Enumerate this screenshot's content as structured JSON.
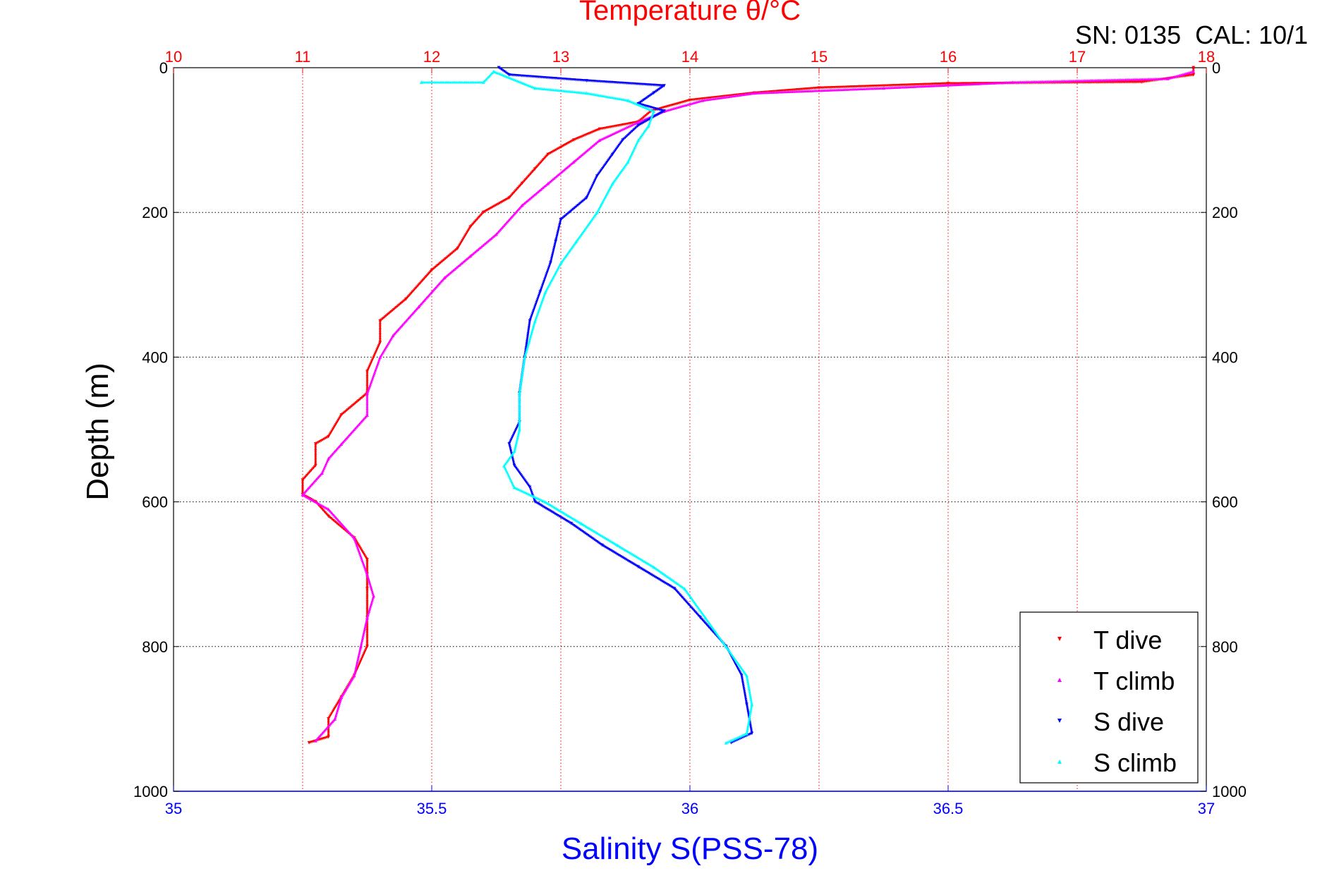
{
  "chart_data": {
    "type": "scatter",
    "title": "Temperature θ/°C",
    "top_axis": {
      "label": "Temperature θ/°C",
      "range": [
        10,
        18
      ],
      "ticks": [
        10,
        11,
        12,
        13,
        14,
        15,
        16,
        17,
        18
      ],
      "color": "#ff0000"
    },
    "bottom_axis": {
      "label": "Salinity S(PSS-78)",
      "range": [
        35,
        37
      ],
      "ticks": [
        "35",
        "35.5",
        "36",
        "36.5",
        "37"
      ],
      "color": "#0000ff"
    },
    "y_axis": {
      "label": "Depth (m)",
      "range": [
        0,
        1000
      ],
      "inverted": true,
      "ticks": [
        0,
        200,
        400,
        600,
        800,
        1000
      ]
    },
    "annotation": "SN: 0135  CAL: 10/1",
    "grid": true,
    "legend_position": "bottom-right",
    "legend": [
      "T dive",
      "T climb",
      "S dive",
      "S climb"
    ],
    "series": [
      {
        "name": "T dive",
        "axis": "temperature",
        "color": "#ff0000",
        "marker": "triangle-down",
        "points": [
          [
            17.9,
            0
          ],
          [
            17.9,
            10
          ],
          [
            17.5,
            20
          ],
          [
            16,
            22
          ],
          [
            15,
            28
          ],
          [
            14.5,
            35
          ],
          [
            14,
            45
          ],
          [
            13.7,
            60
          ],
          [
            13.6,
            75
          ],
          [
            13.3,
            85
          ],
          [
            13.1,
            100
          ],
          [
            12.9,
            120
          ],
          [
            12.8,
            140
          ],
          [
            12.7,
            160
          ],
          [
            12.6,
            180
          ],
          [
            12.4,
            200
          ],
          [
            12.3,
            220
          ],
          [
            12.2,
            250
          ],
          [
            12.0,
            280
          ],
          [
            11.8,
            320
          ],
          [
            11.6,
            350
          ],
          [
            11.6,
            380
          ],
          [
            11.5,
            420
          ],
          [
            11.5,
            450
          ],
          [
            11.3,
            480
          ],
          [
            11.2,
            510
          ],
          [
            11.1,
            520
          ],
          [
            11.1,
            550
          ],
          [
            11.0,
            570
          ],
          [
            11.0,
            590
          ],
          [
            11.1,
            600
          ],
          [
            11.2,
            620
          ],
          [
            11.4,
            650
          ],
          [
            11.5,
            680
          ],
          [
            11.5,
            700
          ],
          [
            11.5,
            720
          ],
          [
            11.5,
            760
          ],
          [
            11.5,
            800
          ],
          [
            11.4,
            840
          ],
          [
            11.3,
            870
          ],
          [
            11.2,
            900
          ],
          [
            11.2,
            925
          ],
          [
            11.05,
            933
          ]
        ]
      },
      {
        "name": "T climb",
        "axis": "temperature",
        "color": "#ff00ff",
        "marker": "triangle-up",
        "points": [
          [
            17.9,
            5
          ],
          [
            17.7,
            15
          ],
          [
            16.5,
            20
          ],
          [
            15.5,
            28
          ],
          [
            14.5,
            35
          ],
          [
            14.1,
            45
          ],
          [
            13.8,
            60
          ],
          [
            13.6,
            75
          ],
          [
            13.3,
            100
          ],
          [
            13.1,
            130
          ],
          [
            12.9,
            160
          ],
          [
            12.7,
            190
          ],
          [
            12.5,
            230
          ],
          [
            12.3,
            260
          ],
          [
            12.1,
            290
          ],
          [
            11.9,
            330
          ],
          [
            11.7,
            370
          ],
          [
            11.6,
            400
          ],
          [
            11.5,
            450
          ],
          [
            11.5,
            480
          ],
          [
            11.3,
            520
          ],
          [
            11.2,
            540
          ],
          [
            11.15,
            560
          ],
          [
            11.0,
            590
          ],
          [
            11.2,
            610
          ],
          [
            11.4,
            650
          ],
          [
            11.5,
            700
          ],
          [
            11.55,
            730
          ],
          [
            11.5,
            760
          ],
          [
            11.45,
            800
          ],
          [
            11.4,
            840
          ],
          [
            11.3,
            870
          ],
          [
            11.25,
            900
          ],
          [
            11.1,
            930
          ]
        ]
      },
      {
        "name": "S dive",
        "axis": "salinity",
        "color": "#0000ff",
        "marker": "triangle-down",
        "points": [
          [
            35.63,
            0
          ],
          [
            35.65,
            10
          ],
          [
            35.8,
            18
          ],
          [
            35.95,
            25
          ],
          [
            35.93,
            35
          ],
          [
            35.9,
            50
          ],
          [
            35.95,
            60
          ],
          [
            35.9,
            80
          ],
          [
            35.87,
            100
          ],
          [
            35.85,
            120
          ],
          [
            35.82,
            150
          ],
          [
            35.8,
            180
          ],
          [
            35.75,
            210
          ],
          [
            35.74,
            240
          ],
          [
            35.73,
            270
          ],
          [
            35.71,
            310
          ],
          [
            35.69,
            350
          ],
          [
            35.68,
            400
          ],
          [
            35.67,
            450
          ],
          [
            35.67,
            490
          ],
          [
            35.65,
            520
          ],
          [
            35.66,
            550
          ],
          [
            35.69,
            580
          ],
          [
            35.7,
            600
          ],
          [
            35.77,
            630
          ],
          [
            35.83,
            660
          ],
          [
            35.9,
            690
          ],
          [
            35.97,
            720
          ],
          [
            36.02,
            760
          ],
          [
            36.07,
            800
          ],
          [
            36.1,
            840
          ],
          [
            36.11,
            880
          ],
          [
            36.12,
            920
          ],
          [
            36.08,
            933
          ]
        ]
      },
      {
        "name": "S climb",
        "axis": "salinity",
        "color": "#00ffff",
        "marker": "triangle-up",
        "points": [
          [
            35.48,
            20
          ],
          [
            35.6,
            20
          ],
          [
            35.62,
            5
          ],
          [
            35.7,
            28
          ],
          [
            35.8,
            35
          ],
          [
            35.88,
            45
          ],
          [
            35.93,
            60
          ],
          [
            35.92,
            80
          ],
          [
            35.9,
            100
          ],
          [
            35.88,
            130
          ],
          [
            35.85,
            160
          ],
          [
            35.82,
            200
          ],
          [
            35.78,
            240
          ],
          [
            35.75,
            270
          ],
          [
            35.72,
            310
          ],
          [
            35.7,
            350
          ],
          [
            35.68,
            400
          ],
          [
            35.67,
            450
          ],
          [
            35.67,
            500
          ],
          [
            35.66,
            530
          ],
          [
            35.64,
            550
          ],
          [
            35.66,
            580
          ],
          [
            35.72,
            600
          ],
          [
            35.79,
            630
          ],
          [
            35.86,
            660
          ],
          [
            35.93,
            690
          ],
          [
            35.99,
            720
          ],
          [
            36.03,
            760
          ],
          [
            36.07,
            800
          ],
          [
            36.11,
            840
          ],
          [
            36.12,
            880
          ],
          [
            36.11,
            920
          ],
          [
            36.07,
            933
          ]
        ]
      }
    ]
  }
}
